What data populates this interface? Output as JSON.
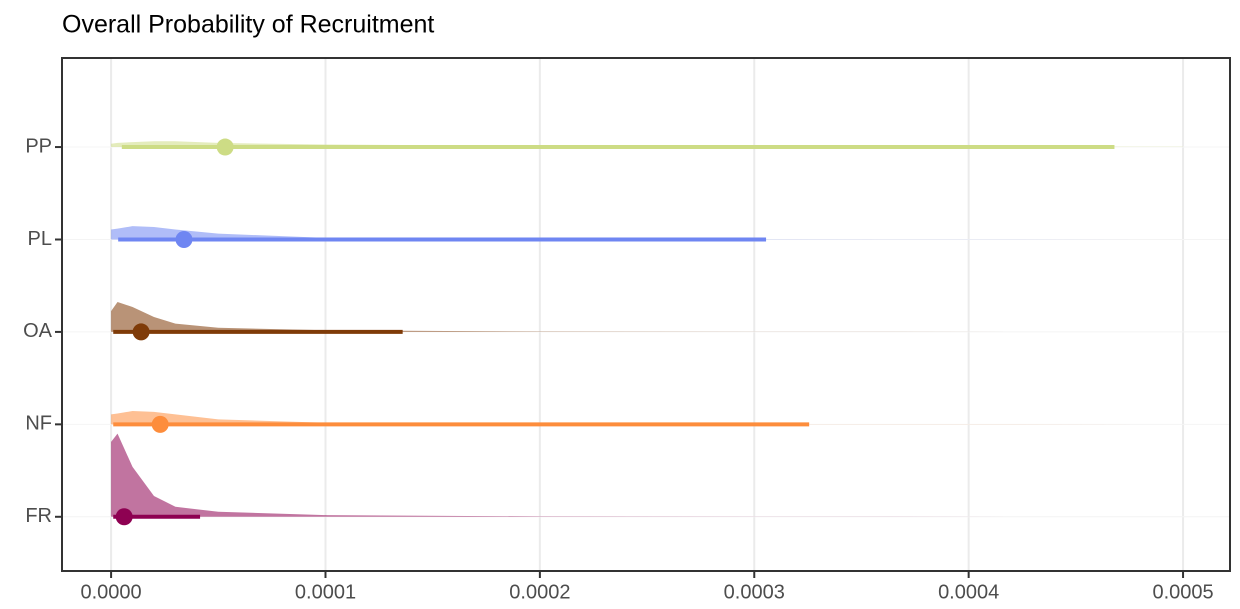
{
  "chart_data": {
    "type": "halfeye",
    "title": "Overall Probability of Recruitment",
    "categories": [
      "FR",
      "NF",
      "OA",
      "PL",
      "PP"
    ],
    "density_x": [
      0,
      3e-06,
      1e-05,
      2e-05,
      3e-05,
      5e-05,
      0.0001,
      0.0002,
      0.0003,
      0.0005
    ],
    "series": [
      {
        "name": "FR",
        "color": "#8e0152",
        "point": 6.1e-06,
        "lower": 1e-06,
        "upper": 4.15e-05,
        "density": [
          0.9,
          1.0,
          0.6,
          0.25,
          0.12,
          0.06,
          0.02,
          0.005,
          0.002,
          0
        ]
      },
      {
        "name": "NF",
        "color": "#fd8d3c",
        "point": 2.29e-05,
        "lower": 1e-06,
        "upper": 0.0003256,
        "density": [
          0.12,
          0.13,
          0.16,
          0.15,
          0.12,
          0.06,
          0.02,
          0.006,
          0.002,
          0
        ]
      },
      {
        "name": "OA",
        "color": "#7f3b08",
        "point": 1.4e-05,
        "lower": 1e-06,
        "upper": 0.000136,
        "density": [
          0.25,
          0.36,
          0.3,
          0.18,
          0.1,
          0.05,
          0.02,
          0.005,
          0.002,
          0
        ]
      },
      {
        "name": "PL",
        "color": "#6f86f2",
        "point": 3.4e-05,
        "lower": 3.3e-06,
        "upper": 0.0003055,
        "density": [
          0.12,
          0.13,
          0.16,
          0.15,
          0.12,
          0.07,
          0.02,
          0.006,
          0.003,
          0
        ]
      },
      {
        "name": "PP",
        "color": "#cddc85",
        "point": 5.32e-05,
        "lower": 5e-06,
        "upper": 0.000468,
        "density": [
          0.04,
          0.05,
          0.06,
          0.07,
          0.07,
          0.05,
          0.03,
          0.015,
          0.008,
          0.003
        ]
      }
    ],
    "xlim": [
      -2.29e-05,
      0.0005219
    ],
    "xticks": [
      {
        "value": 0,
        "label": "0.0000"
      },
      {
        "value": 0.0001,
        "label": "0.0001"
      },
      {
        "value": 0.0002,
        "label": "0.0002"
      },
      {
        "value": 0.0003,
        "label": "0.0003"
      },
      {
        "value": 0.0004,
        "label": "0.0004"
      },
      {
        "value": 0.0005,
        "label": "0.0005"
      }
    ],
    "grid": true
  }
}
